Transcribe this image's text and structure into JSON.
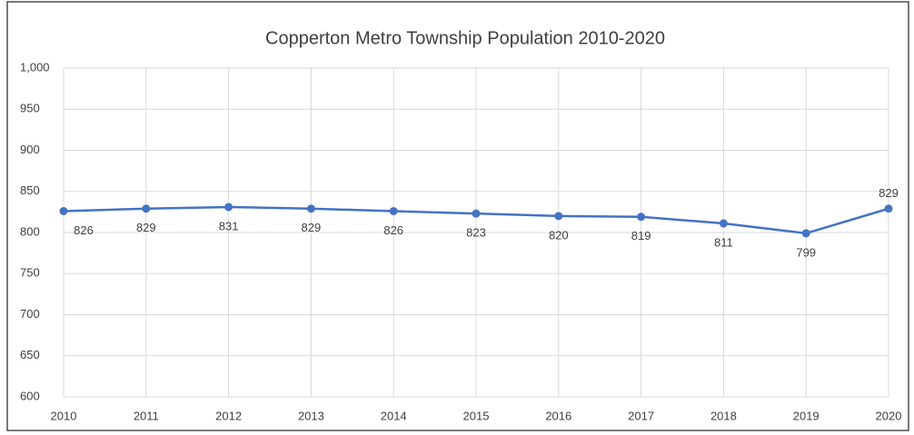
{
  "chart_data": {
    "type": "line",
    "title": "Copperton Metro Township Population 2010-2020",
    "x": [
      2010,
      2011,
      2012,
      2013,
      2014,
      2015,
      2016,
      2017,
      2018,
      2019,
      2020
    ],
    "series": [
      {
        "color": "#4472c4",
        "values": [
          826,
          829,
          831,
          829,
          826,
          823,
          820,
          819,
          811,
          799,
          829
        ]
      }
    ],
    "xlim": [
      2010,
      2020
    ],
    "xticks": [
      2010,
      2011,
      2012,
      2013,
      2014,
      2015,
      2016,
      2017,
      2018,
      2019,
      2020
    ],
    "ylim": [
      600,
      1000
    ],
    "yticks": [
      600,
      650,
      700,
      750,
      800,
      850,
      900,
      950,
      {
        "value": 1000,
        "label": "1,000"
      }
    ],
    "grid": true
  }
}
